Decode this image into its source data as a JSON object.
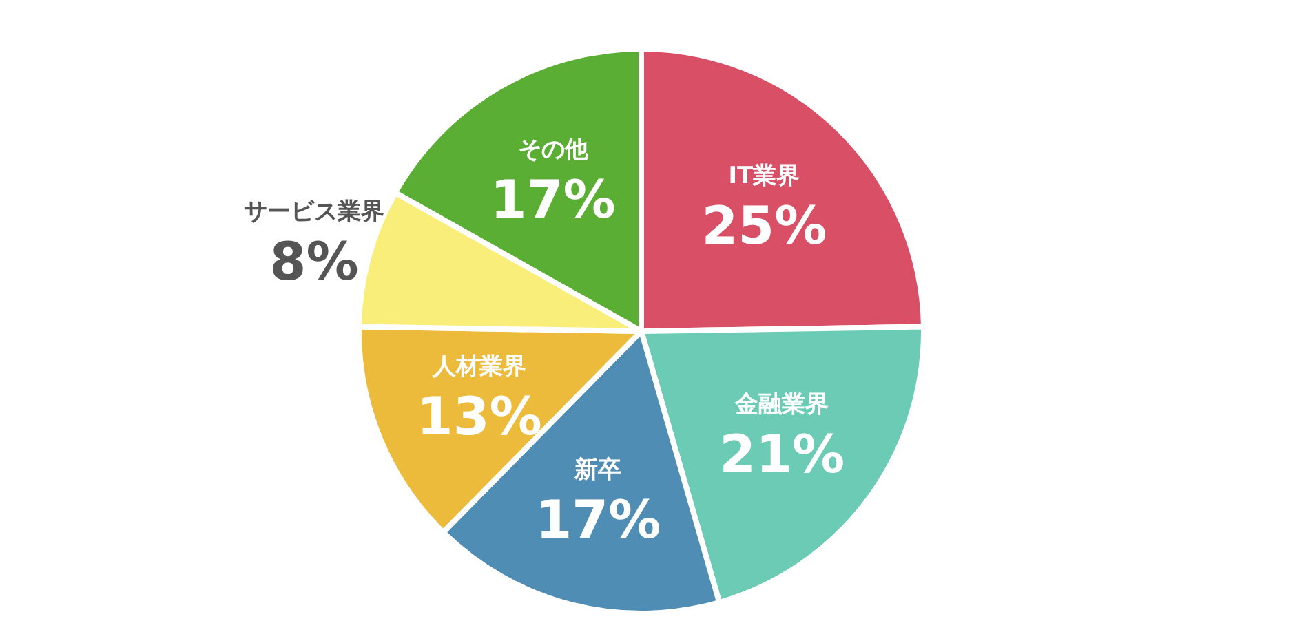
{
  "chart_data": {
    "type": "pie",
    "categories": [
      "IT業界",
      "金融業界",
      "新卒",
      "人材業界",
      "サービス業界",
      "その他"
    ],
    "values": [
      25,
      21,
      17,
      13,
      8,
      17
    ],
    "value_labels": [
      "25%",
      "21%",
      "17%",
      "13%",
      "8%",
      "17%"
    ],
    "colors": [
      "#d94f65",
      "#6ccbb5",
      "#4f8db5",
      "#ecbb3c",
      "#f9ee7a",
      "#5aae33"
    ]
  }
}
